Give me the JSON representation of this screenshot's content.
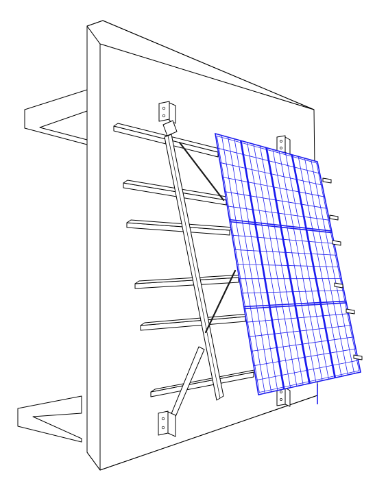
{
  "figure": {
    "subject": "wall-mounted-solar-panel-rack",
    "colors": {
      "line": "#000000",
      "panel": "#1a1aee",
      "background": "#ffffff"
    },
    "panel_array": {
      "columns": 4,
      "rows": 3,
      "cells_per_module_x": 4,
      "cells_per_module_y": 6
    }
  }
}
